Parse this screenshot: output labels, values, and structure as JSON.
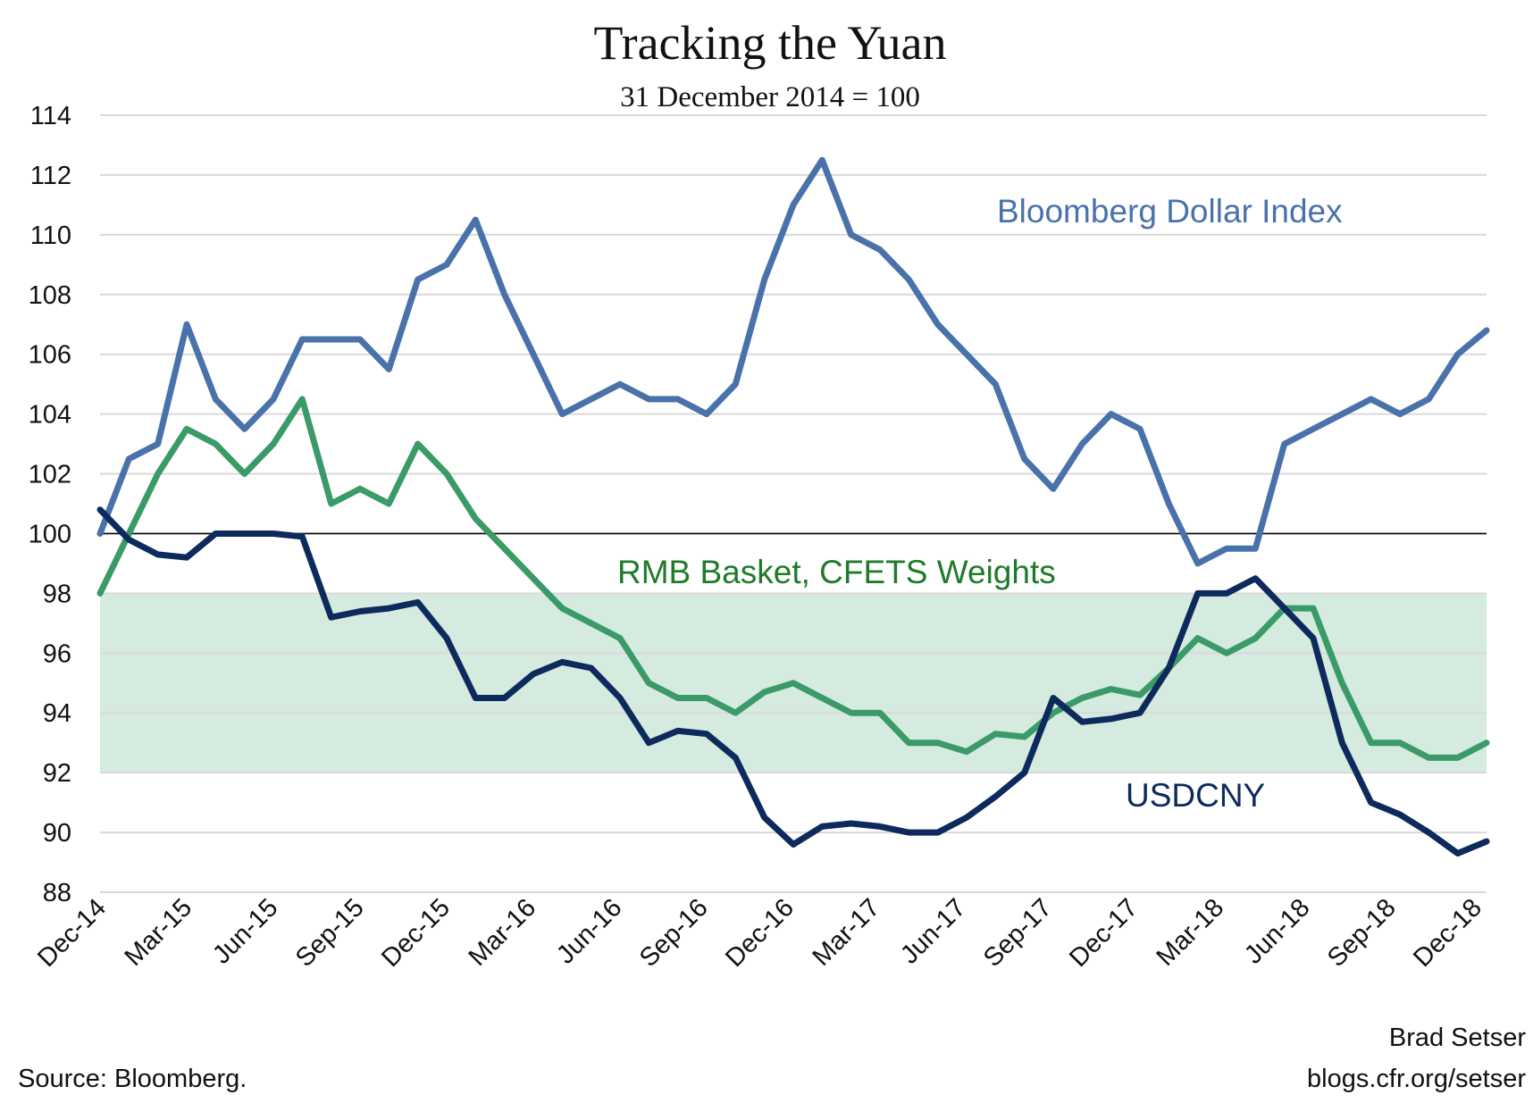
{
  "chart_data": {
    "type": "line",
    "title": "Tracking the Yuan",
    "subtitle": "31 December 2014 = 100",
    "ylim": [
      88,
      114
    ],
    "yticks": [
      88,
      90,
      92,
      94,
      96,
      98,
      100,
      102,
      104,
      106,
      108,
      110,
      112,
      114
    ],
    "xtick_labels": [
      "Dec-14",
      "Mar-15",
      "Jun-15",
      "Sep-15",
      "Dec-15",
      "Mar-16",
      "Jun-16",
      "Sep-16",
      "Dec-16",
      "Mar-17",
      "Jun-17",
      "Sep-17",
      "Dec-17",
      "Mar-18",
      "Jun-18",
      "Sep-18",
      "Dec-18"
    ],
    "x": [
      "2014-12",
      "2015-01",
      "2015-02",
      "2015-03",
      "2015-04",
      "2015-05",
      "2015-06",
      "2015-07",
      "2015-08",
      "2015-09",
      "2015-10",
      "2015-11",
      "2015-12",
      "2016-01",
      "2016-02",
      "2016-03",
      "2016-04",
      "2016-05",
      "2016-06",
      "2016-07",
      "2016-08",
      "2016-09",
      "2016-10",
      "2016-11",
      "2016-12",
      "2017-01",
      "2017-02",
      "2017-03",
      "2017-04",
      "2017-05",
      "2017-06",
      "2017-07",
      "2017-08",
      "2017-09",
      "2017-10",
      "2017-11",
      "2017-12",
      "2018-01",
      "2018-02",
      "2018-03",
      "2018-04",
      "2018-05",
      "2018-06",
      "2018-07",
      "2018-08",
      "2018-09",
      "2018-10",
      "2018-11",
      "2018-12"
    ],
    "reference_line": 100,
    "shaded_band": [
      92,
      98
    ],
    "grid": true,
    "series": [
      {
        "name": "Bloomberg Dollar Index",
        "color": "#4a72aa",
        "values": [
          100,
          102.5,
          103,
          107,
          104.5,
          103.5,
          104.5,
          106.5,
          106.5,
          106.5,
          105.5,
          108.5,
          109,
          110.5,
          108,
          106,
          104,
          104.5,
          105,
          104.5,
          104.5,
          104,
          105,
          108.5,
          111,
          112.5,
          110,
          109.5,
          108.5,
          107,
          106,
          105,
          102.5,
          101.5,
          103,
          104,
          103.5,
          101,
          99,
          99.5,
          99.5,
          103,
          103.5,
          104,
          104.5,
          104,
          104.5,
          106,
          106.8
        ]
      },
      {
        "name": "RMB Basket, CFETS Weights",
        "color": "#3a9a68",
        "label_color": "#1f7a2a",
        "values": [
          98,
          100,
          102,
          103.5,
          103,
          102,
          103,
          104.5,
          101,
          101.5,
          101,
          103,
          102,
          100.5,
          99.5,
          98.5,
          97.5,
          97,
          96.5,
          95,
          94.5,
          94.5,
          94,
          94.7,
          95,
          94.5,
          94,
          94,
          93,
          93,
          92.7,
          93.3,
          93.2,
          94,
          94.5,
          94.8,
          94.6,
          95.5,
          96.5,
          96,
          96.5,
          97.5,
          97.5,
          95,
          93,
          93,
          92.5,
          92.5,
          93
        ]
      },
      {
        "name": "USDCNY",
        "color": "#0d2a5c",
        "values": [
          100.8,
          99.8,
          99.3,
          99.2,
          100,
          100,
          100,
          99.9,
          97.2,
          97.4,
          97.5,
          97.7,
          96.5,
          94.5,
          94.5,
          95.3,
          95.7,
          95.5,
          94.5,
          93,
          93.4,
          93.3,
          92.5,
          90.5,
          89.6,
          90.2,
          90.3,
          90.2,
          90,
          90,
          90.5,
          91.2,
          92,
          94.5,
          93.7,
          93.8,
          94,
          95.5,
          98,
          98,
          98.5,
          97.5,
          96.5,
          93,
          91,
          90.6,
          90,
          89.3,
          89.7
        ]
      }
    ],
    "band_color": "#d5ebdf"
  },
  "footer": {
    "source": "Source: Bloomberg.",
    "author": "Brad Setser",
    "url": "blogs.cfr.org/setser"
  }
}
